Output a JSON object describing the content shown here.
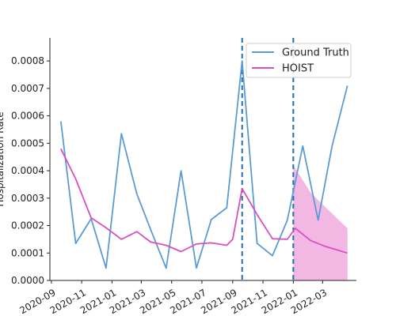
{
  "chart_data": {
    "type": "line",
    "title": "",
    "xlabel": "",
    "ylabel": "Hospitalization Rate",
    "ylim": [
      0,
      0.0008
    ],
    "y_ticks": [
      "0.0000",
      "0.0001",
      "0.0002",
      "0.0003",
      "0.0004",
      "0.0005",
      "0.0006",
      "0.0007",
      "0.0008"
    ],
    "x_ticks": [
      "2020-09",
      "2020-11",
      "2021-01",
      "2021-03",
      "2021-05",
      "2021-07",
      "2021-09",
      "2021-11",
      "2022-01",
      "2022-03"
    ],
    "grid": false,
    "legend_position": "top-right",
    "x": [
      "2020-09-20",
      "2020-10-20",
      "2020-11-20",
      "2020-12-20",
      "2021-01-20",
      "2021-02-20",
      "2021-03-20",
      "2021-04-20",
      "2021-05-20",
      "2021-06-20",
      "2021-07-20",
      "2021-08-20",
      "2021-09-20",
      "2021-10-20",
      "2021-11-20",
      "2021-12-20",
      "2022-01-20",
      "2022-02-20",
      "2022-03-20",
      "2022-04-20"
    ],
    "series": [
      {
        "name": "Ground Truth",
        "color": "#5b9bd5",
        "values": [
          0.00058,
          0.000135,
          0.000225,
          4.5e-05,
          0.000535,
          0.000315,
          0.000185,
          4.5e-05,
          0.0004,
          4.5e-05,
          0.000222,
          0.000265,
          0.0008,
          0.000135,
          9e-05,
          0.00022,
          0.00049,
          0.00022,
          0.00049,
          0.00071
        ]
      },
      {
        "name": "HOIST",
        "color": "#d84fc0",
        "values": [
          0.00048,
          0.00037,
          0.000228,
          0.000192,
          0.00015,
          0.000178,
          0.00014,
          0.000128,
          0.000105,
          0.000133,
          0.000137,
          0.000128,
          0.00015,
          0.000335,
          0.00024,
          0.000152,
          0.00015,
          0.00019,
          0.000145,
          0.000125,
          0.0001
        ],
        "x": [
          "2020-09-20",
          "2020-10-20",
          "2020-11-20",
          "2020-12-20",
          "2021-01-20",
          "2021-02-20",
          "2021-03-20",
          "2021-04-20",
          "2021-05-20",
          "2021-06-20",
          "2021-07-20",
          "2021-08-20",
          "2021-09-01",
          "2021-09-20",
          "2021-10-20",
          "2021-11-20",
          "2021-12-20",
          "2022-01-05",
          "2022-02-05",
          "2022-03-05",
          "2022-04-20"
        ]
      }
    ],
    "band": {
      "color": "#ee99d8",
      "x": [
        "2022-01-01",
        "2022-02-05",
        "2022-03-05",
        "2022-04-20"
      ],
      "upper": [
        0.00042,
        0.00032,
        0.00027,
        0.00019
      ],
      "lower": [
        0.0,
        0.0,
        0.0,
        0.0
      ]
    },
    "vlines": [
      {
        "x": "2021-09-20",
        "color": "#1f6fb2"
      },
      {
        "x": "2022-01-01",
        "color": "#1f6fb2"
      }
    ]
  }
}
